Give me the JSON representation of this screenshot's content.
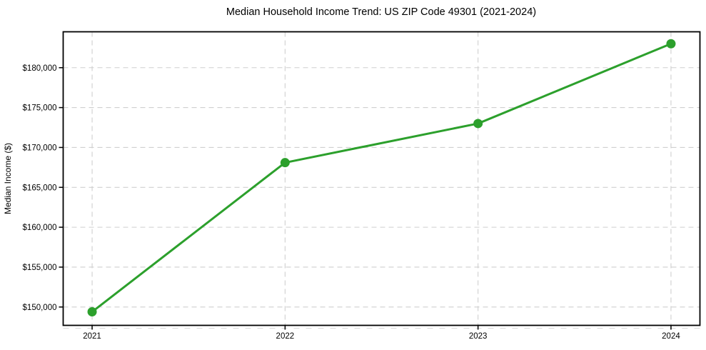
{
  "chart_data": {
    "type": "line",
    "title": "Median Household Income Trend: US ZIP Code 49301 (2021-2024)",
    "xlabel": "",
    "ylabel": "Median Income ($)",
    "x": [
      2021,
      2022,
      2023,
      2024
    ],
    "x_tick_labels": [
      "2021",
      "2022",
      "2023",
      "2024"
    ],
    "values": [
      149400,
      168100,
      173000,
      183000
    ],
    "y_ticks": [
      150000,
      155000,
      160000,
      165000,
      170000,
      175000,
      180000
    ],
    "y_tick_labels": [
      "$150,000",
      "$155,000",
      "$160,000",
      "$165,000",
      "$170,000",
      "$175,000",
      "$180,000"
    ],
    "xlim": [
      2020.85,
      2024.15
    ],
    "ylim": [
      147700,
      184500
    ],
    "grid": true,
    "grid_style": "dashed",
    "legend": "none",
    "marker": "circle",
    "colors": {
      "line": "#2ca02c",
      "marker": "#2ca02c",
      "grid": "#cfcfcf",
      "minor_dashes": "#d9d9d9",
      "spine": "#000000",
      "text": "#000000",
      "background": "#ffffff"
    }
  }
}
